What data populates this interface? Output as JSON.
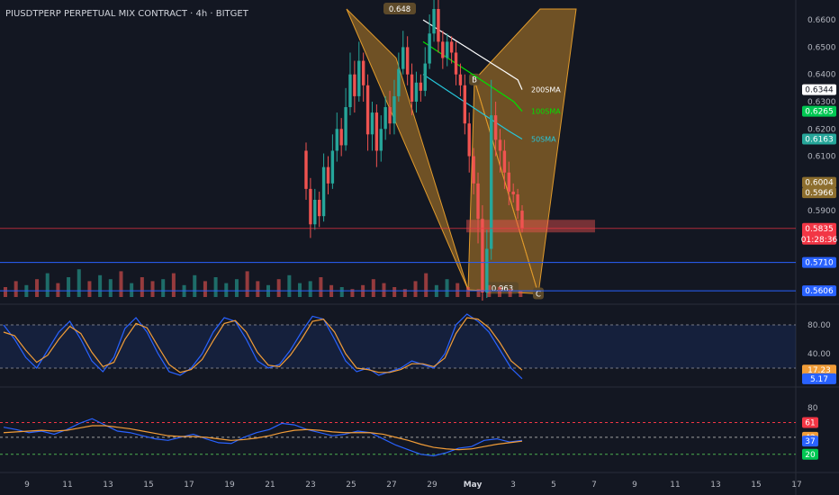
{
  "header": {
    "title": "PIUSDTPERP PERPETUAL MIX CONTRACT · 4h · BITGET"
  },
  "colors": {
    "bg": "#131722",
    "up": "#26a69a",
    "down": "#ef5350",
    "orange": "#f29d38",
    "blue": "#2962ff",
    "sma200": "#ffffff",
    "sma100": "#00e000",
    "sma50": "#26c6da",
    "pattern": "#e09a2b"
  },
  "chart_data": [
    {
      "type": "candlestick",
      "title": "PIUSDTPERP PERPETUAL MIX CONTRACT · 4h · BITGET",
      "x_ticks": [
        "9",
        "11",
        "13",
        "15",
        "17",
        "19",
        "21",
        "23",
        "25",
        "27",
        "29",
        "May",
        "3",
        "5",
        "7",
        "9",
        "11",
        "13",
        "15",
        "17"
      ],
      "y_ticks": [
        0.66,
        0.65,
        0.64,
        0.63,
        0.62,
        0.61,
        0.6,
        0.59
      ],
      "y_tick_labels": [
        "0.6600",
        "0.6500",
        "0.6400",
        "0.6300",
        "0.6200",
        "0.6100",
        "0.6000",
        "0.5900"
      ],
      "ylim": [
        0.559,
        0.664
      ],
      "candles": [
        [
          0.612,
          0.598,
          0.615,
          0.594
        ],
        [
          0.598,
          0.585,
          0.602,
          0.58
        ],
        [
          0.585,
          0.594,
          0.598,
          0.583
        ],
        [
          0.594,
          0.588,
          0.597,
          0.584
        ],
        [
          0.588,
          0.606,
          0.611,
          0.586
        ],
        [
          0.606,
          0.6,
          0.61,
          0.596
        ],
        [
          0.6,
          0.612,
          0.618,
          0.598
        ],
        [
          0.612,
          0.62,
          0.626,
          0.608
        ],
        [
          0.62,
          0.614,
          0.624,
          0.61
        ],
        [
          0.614,
          0.628,
          0.635,
          0.612
        ],
        [
          0.628,
          0.64,
          0.648,
          0.625
        ],
        [
          0.64,
          0.632,
          0.645,
          0.626
        ],
        [
          0.632,
          0.645,
          0.652,
          0.63
        ],
        [
          0.645,
          0.636,
          0.648,
          0.63
        ],
        [
          0.636,
          0.618,
          0.64,
          0.612
        ],
        [
          0.618,
          0.626,
          0.63,
          0.612
        ],
        [
          0.626,
          0.612,
          0.629,
          0.606
        ],
        [
          0.612,
          0.62,
          0.625,
          0.608
        ],
        [
          0.62,
          0.628,
          0.632,
          0.616
        ],
        [
          0.628,
          0.622,
          0.634,
          0.618
        ],
        [
          0.622,
          0.632,
          0.638,
          0.618
        ],
        [
          0.632,
          0.642,
          0.648,
          0.63
        ],
        [
          0.642,
          0.65,
          0.656,
          0.64
        ],
        [
          0.65,
          0.64,
          0.654,
          0.636
        ],
        [
          0.64,
          0.63,
          0.644,
          0.625
        ],
        [
          0.63,
          0.637,
          0.641,
          0.626
        ],
        [
          0.637,
          0.634,
          0.64,
          0.63
        ],
        [
          0.634,
          0.644,
          0.65,
          0.632
        ],
        [
          0.644,
          0.655,
          0.662,
          0.642
        ],
        [
          0.655,
          0.664,
          0.669,
          0.652
        ],
        [
          0.664,
          0.652,
          0.668,
          0.648
        ],
        [
          0.652,
          0.646,
          0.656,
          0.642
        ],
        [
          0.646,
          0.652,
          0.655,
          0.643
        ],
        [
          0.652,
          0.648,
          0.654,
          0.644
        ],
        [
          0.648,
          0.64,
          0.652,
          0.636
        ],
        [
          0.64,
          0.636,
          0.644,
          0.632
        ],
        [
          0.636,
          0.622,
          0.64,
          0.618
        ],
        [
          0.622,
          0.61,
          0.626,
          0.604
        ],
        [
          0.61,
          0.6,
          0.613,
          0.596
        ],
        [
          0.6,
          0.587,
          0.604,
          0.578
        ],
        [
          0.587,
          0.56,
          0.592,
          0.557
        ],
        [
          0.56,
          0.576,
          0.583,
          0.558
        ],
        [
          0.576,
          0.625,
          0.638,
          0.572
        ],
        [
          0.625,
          0.616,
          0.63,
          0.61
        ],
        [
          0.616,
          0.612,
          0.62,
          0.604
        ],
        [
          0.612,
          0.604,
          0.616,
          0.598
        ],
        [
          0.604,
          0.597,
          0.608,
          0.592
        ],
        [
          0.597,
          0.596,
          0.6,
          0.593
        ],
        [
          0.596,
          0.59,
          0.598,
          0.587
        ],
        [
          0.59,
          0.5835,
          0.592,
          0.582
        ]
      ],
      "moving_averages": [
        {
          "name": "200SMA",
          "color": "#ffffff",
          "last": 0.6344,
          "values": [
            0.66,
            0.659,
            0.658,
            0.657,
            0.656,
            0.655,
            0.654,
            0.653,
            0.652,
            0.651,
            0.65,
            0.649,
            0.648,
            0.647,
            0.646,
            0.645,
            0.644,
            0.643,
            0.642,
            0.641,
            0.64,
            0.639,
            0.638,
            0.6344
          ]
        },
        {
          "name": "100SMA",
          "color": "#00e000",
          "last": 0.6265,
          "values": [
            0.652,
            0.65,
            0.648,
            0.646,
            0.644,
            0.642,
            0.64,
            0.638,
            0.636,
            0.634,
            0.632,
            0.63,
            0.6265
          ]
        },
        {
          "name": "50SMA",
          "color": "#26c6da",
          "last": 0.6163,
          "values": [
            0.64,
            0.637,
            0.634,
            0.631,
            0.628,
            0.625,
            0.622,
            0.619,
            0.6163
          ]
        }
      ],
      "price_labels": [
        {
          "value": 0.6344,
          "text": "0.6344",
          "bg": "#ffffff",
          "fg": "#131722"
        },
        {
          "value": 0.6265,
          "text": "0.6265",
          "bg": "#00c853",
          "fg": "#ffffff"
        },
        {
          "value": 0.6163,
          "text": "0.6163",
          "bg": "#26a69a",
          "fg": "#ffffff"
        },
        {
          "value": 0.6004,
          "text": "0.6004",
          "bg": "#8d6e2e",
          "fg": "#ffffff"
        },
        {
          "value": 0.5966,
          "text": "0.5966",
          "bg": "#8d6e2e",
          "fg": "#ffffff"
        },
        {
          "value": 0.5835,
          "text": "0.5835",
          "bg": "#f23645",
          "fg": "#ffffff"
        },
        {
          "value": 0.571,
          "text": "0.5710",
          "bg": "#2962ff",
          "fg": "#ffffff"
        },
        {
          "value": 0.5606,
          "text": "0.5606",
          "bg": "#2962ff",
          "fg": "#ffffff"
        }
      ],
      "countdown": "01:28:36",
      "horizontal_lines": [
        0.5835,
        0.571,
        0.5606
      ],
      "zone": {
        "top": 0.586,
        "bottom": 0.5835
      },
      "pattern_labels": [
        {
          "text": "0.648",
          "price": 0.664
        },
        {
          "text": "B",
          "price": 0.638
        },
        {
          "text": "0.963",
          "price": 0.5615
        },
        {
          "text": "C",
          "price": 0.5595
        }
      ],
      "volume": [
        5,
        8,
        6,
        9,
        12,
        7,
        10,
        14,
        8,
        11,
        9,
        13,
        7,
        10,
        8,
        9,
        12,
        6,
        11,
        8,
        10,
        7,
        9,
        13,
        8,
        6,
        9,
        11,
        7,
        8,
        10,
        6,
        5,
        4,
        6,
        9,
        7,
        5,
        4,
        8,
        12,
        6,
        9,
        7,
        5,
        4,
        6,
        5,
        4,
        3
      ]
    },
    {
      "type": "line",
      "name": "stochastic",
      "y_ticks": [
        80,
        40
      ],
      "y_tick_labels": [
        "80.00",
        "40.00"
      ],
      "ylim": [
        0,
        100
      ],
      "band": [
        20,
        80
      ],
      "series": [
        {
          "color": "#2962ff",
          "values": [
            80,
            60,
            35,
            20,
            45,
            70,
            85,
            60,
            30,
            15,
            35,
            75,
            90,
            70,
            40,
            15,
            10,
            20,
            40,
            70,
            90,
            85,
            60,
            30,
            20,
            25,
            45,
            70,
            92,
            88,
            60,
            30,
            15,
            20,
            10,
            15,
            20,
            30,
            25,
            20,
            40,
            80,
            95,
            85,
            70,
            45,
            20,
            5.17
          ]
        },
        {
          "color": "#f29d38",
          "values": [
            70,
            65,
            45,
            28,
            38,
            60,
            78,
            68,
            42,
            22,
            28,
            60,
            82,
            76,
            50,
            25,
            14,
            18,
            32,
            58,
            82,
            86,
            70,
            42,
            24,
            22,
            38,
            60,
            85,
            88,
            70,
            40,
            20,
            18,
            14,
            14,
            18,
            26,
            26,
            22,
            34,
            68,
            90,
            88,
            76,
            55,
            30,
            17.23
          ]
        }
      ],
      "last_labels": [
        {
          "text": "17.23",
          "value": 17.23,
          "bg": "#f29d38"
        },
        {
          "text": "5.17",
          "value": 5.17,
          "bg": "#2962ff"
        }
      ]
    },
    {
      "type": "line",
      "name": "oscillator",
      "y_ticks": [
        80
      ],
      "y_tick_labels": [
        "80"
      ],
      "ylim": [
        0,
        100
      ],
      "levels": [
        {
          "value": 61,
          "color": "#f23645"
        },
        {
          "value": 42,
          "color": "#9e9e9e"
        },
        {
          "value": 20,
          "color": "#4caf50"
        }
      ],
      "series": [
        {
          "color": "#2962ff",
          "values": [
            55,
            52,
            48,
            50,
            46,
            52,
            60,
            66,
            58,
            50,
            48,
            44,
            40,
            38,
            42,
            46,
            40,
            35,
            34,
            42,
            48,
            52,
            60,
            58,
            52,
            48,
            44,
            46,
            50,
            48,
            40,
            32,
            26,
            20,
            18,
            22,
            28,
            30,
            38,
            40,
            36,
            38
          ]
        },
        {
          "color": "#f29d38",
          "values": [
            48,
            49,
            50,
            51,
            50,
            51,
            54,
            57,
            57,
            55,
            53,
            50,
            47,
            44,
            43,
            43,
            42,
            40,
            38,
            39,
            41,
            44,
            48,
            51,
            52,
            51,
            49,
            48,
            48,
            48,
            46,
            42,
            38,
            33,
            29,
            27,
            26,
            27,
            30,
            33,
            35,
            37
          ]
        }
      ],
      "last_labels": [
        {
          "text": "61",
          "value": 61,
          "bg": "#f23645"
        },
        {
          "text": "42",
          "value": 42,
          "bg": "#f29d38"
        },
        {
          "text": "37",
          "value": 37,
          "bg": "#2962ff"
        },
        {
          "text": "20",
          "value": 20,
          "bg": "#00c853"
        }
      ]
    }
  ]
}
